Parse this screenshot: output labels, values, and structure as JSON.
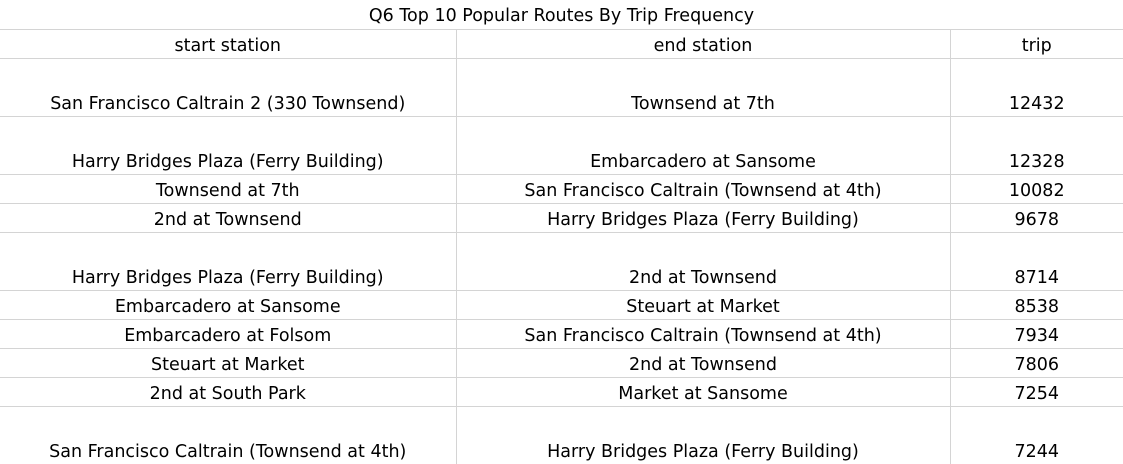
{
  "title": "Q6 Top 10 Popular Routes By Trip Frequency",
  "columns": [
    "start station",
    "end station",
    "trip"
  ],
  "rows": [
    [
      "San Francisco Caltrain 2 (330 Townsend)",
      "Townsend at 7th",
      "12432"
    ],
    [
      "Harry Bridges Plaza (Ferry Building)",
      "Embarcadero at Sansome",
      "12328"
    ],
    [
      "Townsend at 7th",
      "San Francisco Caltrain (Townsend at 4th)",
      "10082"
    ],
    [
      "2nd at Townsend",
      "Harry Bridges Plaza (Ferry Building)",
      "9678"
    ],
    [
      "Harry Bridges Plaza (Ferry Building)",
      "2nd at Townsend",
      "8714"
    ],
    [
      "Embarcadero at Sansome",
      "Steuart at Market",
      "8538"
    ],
    [
      "Embarcadero at Folsom",
      "San Francisco Caltrain (Townsend at 4th)",
      "7934"
    ],
    [
      "Steuart at Market",
      "2nd at Townsend",
      "7806"
    ],
    [
      "2nd at South Park",
      "Market at Sansome",
      "7254"
    ],
    [
      "San Francisco Caltrain (Townsend at 4th)",
      "Harry Bridges Plaza (Ferry Building)",
      "7244"
    ]
  ]
}
